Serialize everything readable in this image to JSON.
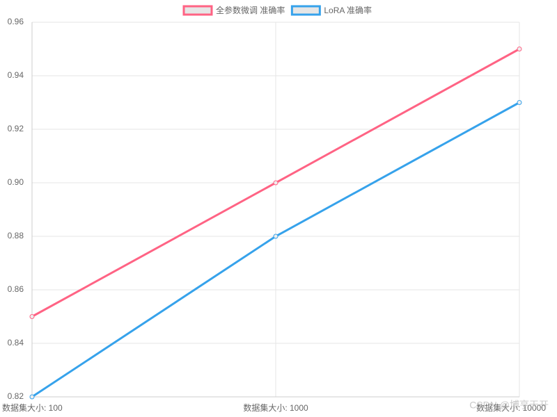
{
  "chart_data": {
    "type": "line",
    "categories": [
      "数据集大小: 100",
      "数据集大小: 1000",
      "数据集大小: 10000"
    ],
    "series": [
      {
        "name": "全参数微调 准确率",
        "color": "#ff6384",
        "values": [
          0.85,
          0.9,
          0.95
        ]
      },
      {
        "name": "LoRA 准确率",
        "color": "#36a2eb",
        "values": [
          0.82,
          0.88,
          0.93
        ]
      }
    ],
    "ylim": [
      0.82,
      0.96
    ],
    "yticks": [
      0.82,
      0.84,
      0.86,
      0.88,
      {
        "value": 0.9,
        "label": "0.90"
      },
      0.92,
      0.94,
      0.96
    ],
    "grid": true,
    "legend": "top",
    "watermark": "CSDN @博亨天开"
  }
}
